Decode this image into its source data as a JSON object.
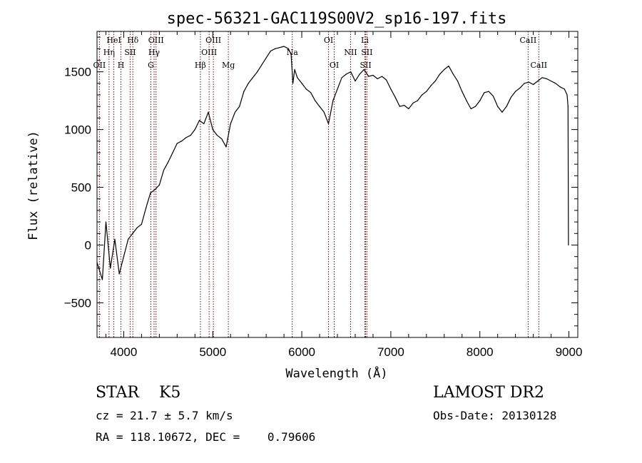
{
  "chart_data": {
    "type": "line",
    "title": "spec-56321-GAC119S00V2_sp16-197.fits",
    "xlabel": "Wavelength (Å)",
    "ylabel": "Flux (relative)",
    "xlim": [
      3700,
      9100
    ],
    "ylim": [
      -800,
      1850
    ],
    "x_ticks": [
      4000,
      5000,
      6000,
      7000,
      8000,
      9000
    ],
    "y_ticks": [
      -500,
      0,
      500,
      1000,
      1500
    ],
    "grid": false,
    "line_color": "#000000",
    "marker_color": "#8b0000",
    "series": [
      {
        "x": [
          3700,
          3760,
          3800,
          3850,
          3900,
          3950,
          4000,
          4050,
          4100,
          4150,
          4200,
          4250,
          4300,
          4350,
          4400,
          4450,
          4500,
          4550,
          4600,
          4650,
          4700,
          4750,
          4800,
          4850,
          4900,
          4950,
          5000,
          5050,
          5100,
          5150,
          5200,
          5250,
          5300,
          5350,
          5400,
          5450,
          5500,
          5550,
          5600,
          5650,
          5700,
          5750,
          5800,
          5850,
          5880,
          5900,
          5920,
          5950,
          6000,
          6050,
          6100,
          6150,
          6200,
          6250,
          6300,
          6350,
          6400,
          6450,
          6500,
          6550,
          6600,
          6650,
          6700,
          6750,
          6800,
          6850,
          6900,
          6950,
          7000,
          7050,
          7100,
          7150,
          7200,
          7250,
          7300,
          7350,
          7400,
          7450,
          7500,
          7550,
          7600,
          7650,
          7700,
          7750,
          7800,
          7850,
          7900,
          7950,
          8000,
          8050,
          8100,
          8150,
          8200,
          8250,
          8300,
          8350,
          8400,
          8450,
          8500,
          8550,
          8600,
          8650,
          8700,
          8750,
          8800,
          8850,
          8900,
          8950,
          8980,
          8990,
          8995
        ],
        "y": [
          -150,
          -300,
          200,
          -200,
          50,
          -250,
          -100,
          50,
          100,
          150,
          180,
          320,
          450,
          480,
          520,
          650,
          720,
          800,
          880,
          900,
          930,
          950,
          1000,
          1080,
          1050,
          1150,
          1000,
          950,
          920,
          850,
          1050,
          1150,
          1200,
          1330,
          1400,
          1450,
          1500,
          1560,
          1620,
          1680,
          1700,
          1710,
          1720,
          1700,
          1650,
          1400,
          1520,
          1450,
          1400,
          1350,
          1320,
          1250,
          1200,
          1150,
          1050,
          1250,
          1350,
          1450,
          1480,
          1500,
          1420,
          1480,
          1520,
          1460,
          1470,
          1440,
          1460,
          1430,
          1350,
          1280,
          1200,
          1210,
          1180,
          1230,
          1250,
          1300,
          1330,
          1380,
          1420,
          1480,
          1520,
          1550,
          1480,
          1420,
          1330,
          1250,
          1180,
          1200,
          1250,
          1320,
          1330,
          1290,
          1200,
          1150,
          1200,
          1280,
          1330,
          1360,
          1400,
          1410,
          1390,
          1420,
          1450,
          1440,
          1420,
          1400,
          1370,
          1350,
          1300,
          1200,
          0
        ]
      }
    ],
    "lines": [
      {
        "name": "OII",
        "x": 3727,
        "row": 3
      },
      {
        "name": "Hη",
        "x": 3835,
        "row": 2
      },
      {
        "name": "HeI",
        "x": 3889,
        "row": 1
      },
      {
        "name": "H",
        "x": 3969,
        "row": 3
      },
      {
        "name": "SII",
        "x": 4072,
        "row": 2
      },
      {
        "name": "Hδ",
        "x": 4102,
        "row": 1
      },
      {
        "name": "G",
        "x": 4305,
        "row": 3
      },
      {
        "name": "Hγ",
        "x": 4341,
        "row": 2
      },
      {
        "name": "OIII",
        "x": 4363,
        "row": 1
      },
      {
        "name": "Hβ",
        "x": 4861,
        "row": 3
      },
      {
        "name": "OIII",
        "x": 4959,
        "row": 2
      },
      {
        "name": "OIII",
        "x": 5007,
        "row": 1
      },
      {
        "name": "Mg",
        "x": 5175,
        "row": 3
      },
      {
        "name": "Na",
        "x": 5893,
        "row": 2
      },
      {
        "name": "OI",
        "x": 6300,
        "row": 1
      },
      {
        "name": "OI",
        "x": 6364,
        "row": 3
      },
      {
        "name": "NII",
        "x": 6548,
        "row": 2
      },
      {
        "name": "Li",
        "x": 6708,
        "row": 1
      },
      {
        "name": "SII",
        "x": 6717,
        "row": 3
      },
      {
        "name": "SII",
        "x": 6731,
        "row": 2
      },
      {
        "name": "CaII",
        "x": 8542,
        "row": 1
      },
      {
        "name": "CaII",
        "x": 8662,
        "row": 3
      }
    ]
  },
  "info": {
    "star_class": "STAR    K5",
    "survey": "LAMOST DR2",
    "cz": "cz = 21.7 ± 5.7 km/s",
    "obs_date": "Obs-Date: 20130128",
    "coords": "RA = 118.10672, DEC =    0.79606"
  }
}
